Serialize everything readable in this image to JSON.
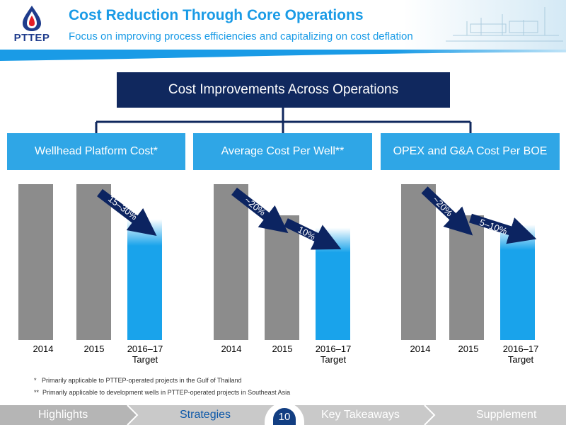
{
  "header": {
    "logo_text": "PTTEP",
    "title": "Cost Reduction Through Core Operations",
    "subtitle": "Focus on improving process efficiencies and capitalizing on cost deflation"
  },
  "top_box": "Cost Improvements Across Operations",
  "colors": {
    "navy": "#10285e",
    "blue": "#2fa6e6",
    "grey": "#8c8c8c",
    "arrow": "#0c2461"
  },
  "chart_data": [
    {
      "type": "bar",
      "title": "Wellhead Platform Cost*",
      "categories": [
        "2014",
        "2015",
        "2016–17 Target"
      ],
      "values": [
        100,
        100,
        77.5
      ],
      "ylim": [
        0,
        110
      ],
      "annotations": [
        "15–30%"
      ]
    },
    {
      "type": "bar",
      "title": "Average Cost Per Well**",
      "categories": [
        "2014",
        "2015",
        "2016–17 Target"
      ],
      "values": [
        100,
        80,
        72
      ],
      "ylim": [
        0,
        110
      ],
      "annotations": [
        "~20%",
        "10%"
      ]
    },
    {
      "type": "bar",
      "title": "OPEX and G&A Cost Per BOE",
      "categories": [
        "2014",
        "2015",
        "2016–17 Target"
      ],
      "values": [
        100,
        80,
        74
      ],
      "ylim": [
        0,
        110
      ],
      "annotations": [
        "~20%",
        "5–10%"
      ]
    }
  ],
  "labels": {
    "y2014": "2014",
    "y2015": "2015",
    "target_years": "2016–17",
    "target": "Target"
  },
  "footnotes": [
    "*   Primarily applicable to PTTEP-operated projects in the Gulf of Thailand",
    "**  Primarily applicable to development wells in PTTEP-operated projects in Southeast Asia"
  ],
  "nav": {
    "items": [
      "Highlights",
      "Strategies",
      "Key Takeaways",
      "Supplement"
    ],
    "page_number": "10"
  }
}
